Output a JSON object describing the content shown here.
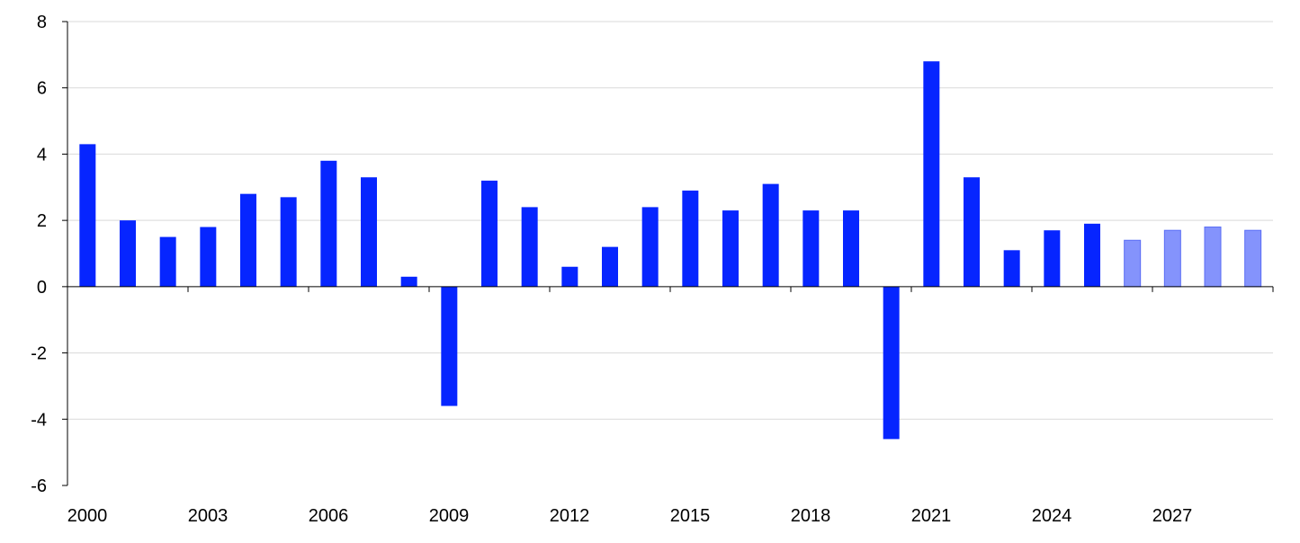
{
  "chart_data": {
    "type": "bar",
    "title": "",
    "xlabel": "",
    "ylabel": "",
    "ylim": [
      -6,
      8
    ],
    "yticks": [
      -6,
      -4,
      -2,
      0,
      2,
      4,
      6,
      8
    ],
    "grid": true,
    "legend": "none",
    "categories": [
      "2000",
      "2001",
      "2002",
      "2003",
      "2004",
      "2005",
      "2006",
      "2007",
      "2008",
      "2009",
      "2010",
      "2011",
      "2012",
      "2013",
      "2014",
      "2015",
      "2016",
      "2017",
      "2018",
      "2019",
      "2020",
      "2021",
      "2022",
      "2023",
      "2024",
      "2025",
      "2026",
      "2027",
      "2028",
      "2029"
    ],
    "xtick_labels": [
      "2000",
      "2003",
      "2006",
      "2009",
      "2012",
      "2015",
      "2018",
      "2021",
      "2024",
      "2027"
    ],
    "values": [
      4.3,
      2.0,
      1.5,
      1.8,
      2.8,
      2.7,
      3.8,
      3.3,
      0.3,
      -3.6,
      3.2,
      2.4,
      0.6,
      1.2,
      2.4,
      2.9,
      2.3,
      3.1,
      2.3,
      2.3,
      -4.6,
      6.8,
      3.3,
      1.1,
      1.7,
      1.9,
      1.4,
      1.7,
      1.8,
      1.7
    ],
    "projected_from": "2026",
    "colors": {
      "actual": "#0625ff",
      "projection": "#8493fc",
      "projection_edge": "#5a6ef5",
      "grid": "#d9d9d9",
      "axis": "#000000"
    }
  }
}
